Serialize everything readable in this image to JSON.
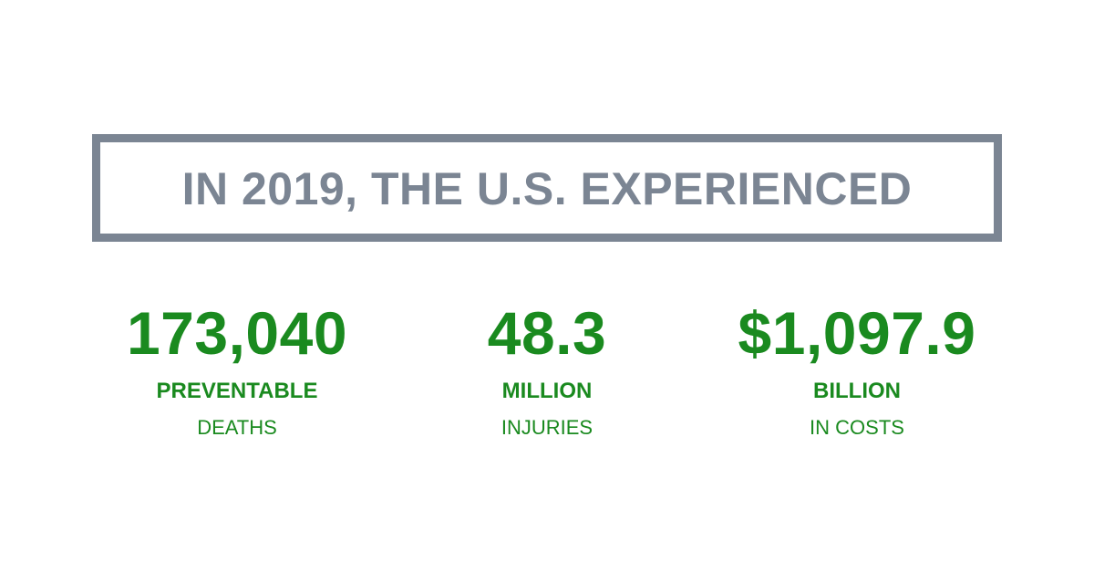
{
  "headline": {
    "text": "IN 2019, THE U.S. EXPERIENCED"
  },
  "stats": [
    {
      "number": "173,040",
      "unit": "PREVENTABLE",
      "desc": "DEATHS"
    },
    {
      "number": "48.3",
      "unit": "MILLION",
      "desc": "INJURIES"
    },
    {
      "number": "$1,097.9",
      "unit": "BILLION",
      "desc": "IN COSTS"
    }
  ],
  "colors": {
    "headline": "#7b8593",
    "stat": "#1a8a1f",
    "background": "#ffffff"
  }
}
